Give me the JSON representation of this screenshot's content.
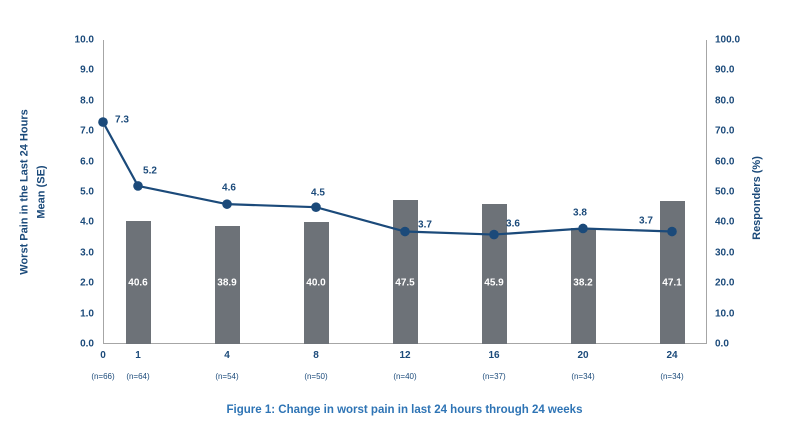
{
  "figure": {
    "caption": "Figure 1: Change in worst pain in last 24 hours through 24 weeks"
  },
  "chart_data": {
    "type": "combo-bar-line",
    "title": "Figure 1: Change in worst pain in last 24 hours through 24 weeks",
    "grid": false,
    "legend": "none",
    "x_axis": {
      "tick_labels": [
        "0",
        "1",
        "4",
        "8",
        "12",
        "16",
        "20",
        "24"
      ],
      "n_labels": [
        "(n=66)",
        "(n=64)",
        "(n=54)",
        "(n=50)",
        "(n=40)",
        "(n=37)",
        "(n=34)",
        "(n=34)"
      ]
    },
    "left_axis": {
      "title_line1": "Worst Pain in the Last 24 Hours",
      "title_line2": "Mean (SE)",
      "min": 0,
      "max": 10,
      "tick_labels": [
        "10.0",
        "9.0",
        "8.0",
        "7.0",
        "6.0",
        "5.0",
        "4.0",
        "3.0",
        "2.0",
        "1.0",
        "0.0"
      ]
    },
    "right_axis": {
      "title": "Responders (%)",
      "min": 0,
      "max": 100,
      "tick_labels": [
        "100.0",
        "90.0",
        "80.0",
        "70.0",
        "60.0",
        "50.0",
        "40.0",
        "30.0",
        "20.0",
        "10.0",
        "0.0"
      ]
    },
    "series": [
      {
        "name": "Responders (%)",
        "type": "bar",
        "axis": "right",
        "categories": [
          "1",
          "4",
          "8",
          "12",
          "16",
          "20",
          "24"
        ],
        "values": [
          40.6,
          38.9,
          40.0,
          47.5,
          45.9,
          38.2,
          47.1
        ],
        "labels": [
          "40.6",
          "38.9",
          "40.0",
          "47.5",
          "45.9",
          "38.2",
          "47.1"
        ]
      },
      {
        "name": "Worst Pain in the Last 24 Hours Mean (SE)",
        "type": "line",
        "axis": "left",
        "categories": [
          "0",
          "1",
          "4",
          "8",
          "12",
          "16",
          "20",
          "24"
        ],
        "values": [
          7.3,
          5.2,
          4.6,
          4.5,
          3.7,
          3.6,
          3.8,
          3.7
        ],
        "labels": [
          "7.3",
          "5.2",
          "4.6",
          "4.5",
          "3.7",
          "3.6",
          "3.8",
          "3.7"
        ]
      }
    ],
    "colors": {
      "line": "#1b4a7a",
      "bar": "#6d7278",
      "axis_line": "#a6a6a6",
      "text": "#1b4a7a",
      "bar_label": "#ffffff",
      "caption": "#2e74b5"
    }
  }
}
